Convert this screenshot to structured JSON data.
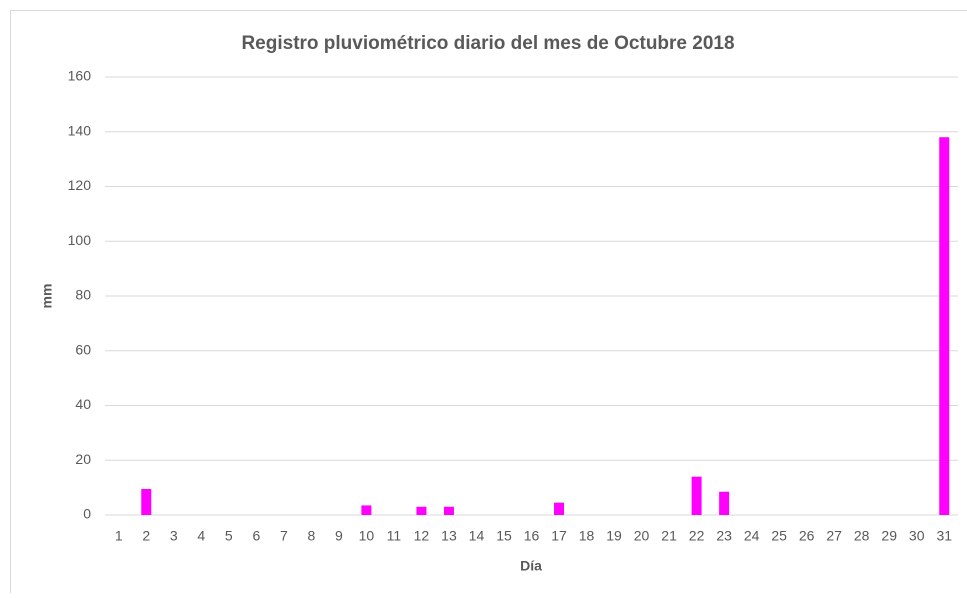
{
  "chart_data": {
    "type": "bar",
    "title": "Registro pluviométrico diario del mes de Octubre 2018",
    "x_label": "Día",
    "y_label": "mm",
    "categories": [
      "1",
      "2",
      "3",
      "4",
      "5",
      "6",
      "7",
      "8",
      "9",
      "10",
      "11",
      "12",
      "13",
      "14",
      "15",
      "16",
      "17",
      "18",
      "19",
      "20",
      "21",
      "22",
      "23",
      "24",
      "25",
      "26",
      "27",
      "28",
      "29",
      "30",
      "31"
    ],
    "values": [
      0,
      9.5,
      0,
      0,
      0,
      0,
      0,
      0,
      0,
      3.5,
      0,
      3,
      3,
      0,
      0,
      0,
      4.5,
      0,
      0,
      0,
      0,
      14,
      8.5,
      0,
      0,
      0,
      0,
      0,
      0,
      0,
      138
    ],
    "color": "#ff00ff",
    "ylim": [
      0,
      160
    ],
    "yticks": [
      0,
      20,
      40,
      60,
      80,
      100,
      120,
      140,
      160
    ],
    "grid": true
  }
}
